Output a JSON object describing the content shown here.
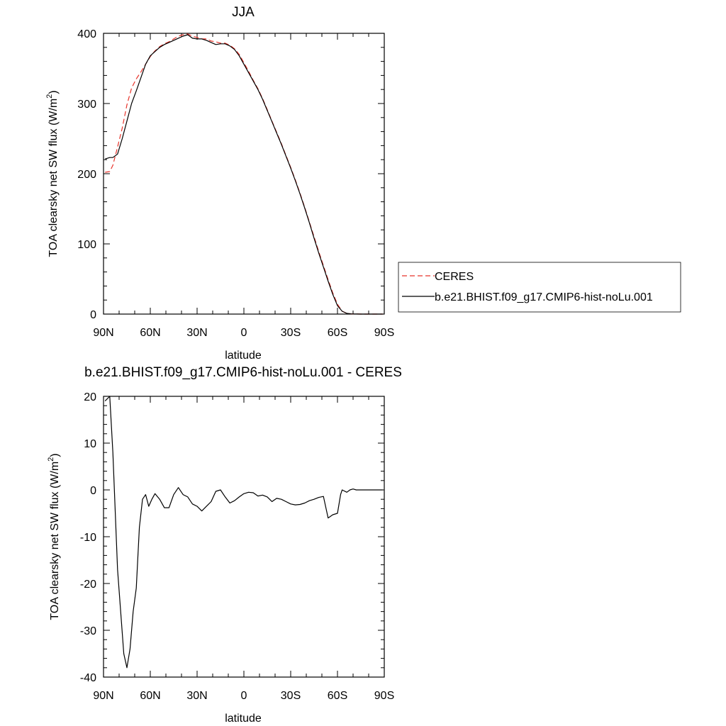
{
  "chart_data": [
    {
      "type": "line",
      "title": "JJA",
      "xlabel": "latitude",
      "ylabel": "TOA clearsky net SW flux (W/m2)",
      "ylabel_main": "TOA clearsky net SW flux (W/m",
      "ylabel_sup": "2",
      "ylabel_close": ")",
      "xlim": [
        90,
        -90
      ],
      "ylim": [
        0,
        400
      ],
      "x_ticks": [
        90,
        60,
        30,
        0,
        -30,
        -60,
        -90
      ],
      "x_tick_labels": [
        "90N",
        "60N",
        "30N",
        "0",
        "30S",
        "60S",
        "90S"
      ],
      "y_ticks": [
        0,
        100,
        200,
        300,
        400
      ],
      "y_tick_labels": [
        "0",
        "100",
        "200",
        "300",
        "400"
      ],
      "grid": false,
      "legend_position": "right",
      "series": [
        {
          "name": "CERES",
          "color": "#e8332a",
          "dash": "dashed",
          "x": [
            89,
            86,
            84,
            81,
            78,
            75,
            72,
            69,
            66,
            63,
            60,
            57,
            54,
            51,
            48,
            45,
            42,
            39,
            36,
            33,
            30,
            27,
            24,
            21,
            18,
            15,
            12,
            9,
            6,
            3,
            0,
            -3,
            -6,
            -9,
            -12,
            -15,
            -18,
            -21,
            -24,
            -27,
            -30,
            -33,
            -36,
            -39,
            -42,
            -45,
            -48,
            -51,
            -54,
            -57,
            -60,
            -63,
            -66,
            -69,
            -72,
            -75,
            -78,
            -81,
            -84,
            -87,
            -89
          ],
          "y": [
            202,
            203,
            212,
            238,
            265,
            298,
            322,
            335,
            345,
            356,
            367,
            375,
            381,
            385,
            388,
            392,
            396,
            398,
            399,
            396,
            394,
            392,
            392,
            389,
            388,
            386,
            386,
            383,
            378,
            370,
            358,
            346,
            333,
            321,
            307,
            291,
            275,
            259,
            243,
            226,
            209,
            191,
            172,
            152,
            131,
            110,
            89,
            69,
            49,
            30,
            14,
            4,
            1,
            0.3,
            0.1,
            0,
            0,
            0,
            0,
            0,
            0
          ]
        },
        {
          "name": "b.e21.BHIST.f09_g17.CMIP6-hist-noLu.001",
          "color": "#000000",
          "dash": "solid",
          "x": [
            89,
            86,
            84,
            81,
            78,
            75,
            72,
            69,
            66,
            63,
            60,
            57,
            54,
            51,
            48,
            45,
            42,
            39,
            36,
            33,
            30,
            27,
            24,
            21,
            18,
            15,
            12,
            9,
            6,
            3,
            0,
            -3,
            -6,
            -9,
            -12,
            -15,
            -18,
            -21,
            -24,
            -27,
            -30,
            -33,
            -36,
            -39,
            -42,
            -45,
            -48,
            -51,
            -54,
            -57,
            -60,
            -63,
            -66,
            -69,
            -72,
            -75,
            -78,
            -81,
            -84,
            -87,
            -89
          ],
          "y": [
            221,
            223,
            223,
            228,
            250,
            275,
            300,
            318,
            337,
            356,
            368,
            374,
            380,
            384,
            387,
            390,
            393,
            396,
            398,
            393,
            392,
            392,
            390,
            387,
            384,
            385,
            385,
            382,
            377,
            368,
            356,
            344,
            332,
            320,
            306,
            290,
            274,
            258,
            242,
            225,
            208,
            190,
            171,
            151,
            130,
            108,
            87,
            67,
            47,
            28,
            12,
            4,
            1,
            0.3,
            0.1,
            0,
            0,
            0,
            0,
            0,
            0
          ]
        }
      ]
    },
    {
      "type": "line",
      "title": "b.e21.BHIST.f09_g17.CMIP6-hist-noLu.001 - CERES",
      "xlabel": "latitude",
      "ylabel": "TOA clearsky net SW flux (W/m2)",
      "ylabel_main": "TOA clearsky net SW flux (W/m",
      "ylabel_sup": "2",
      "ylabel_close": ")",
      "xlim": [
        90,
        -90
      ],
      "ylim": [
        -40,
        20
      ],
      "x_ticks": [
        90,
        60,
        30,
        0,
        -30,
        -60,
        -90
      ],
      "x_tick_labels": [
        "90N",
        "60N",
        "30N",
        "0",
        "30S",
        "60S",
        "90S"
      ],
      "y_ticks": [
        -40,
        -30,
        -20,
        -10,
        0,
        10,
        20
      ],
      "y_tick_labels": [
        "-40",
        "-30",
        "-20",
        "-10",
        "0",
        "10",
        "20"
      ],
      "grid": false,
      "series": [
        {
          "color": "#000000",
          "dash": "solid",
          "x": [
            89,
            86,
            84,
            81,
            79,
            77,
            75,
            73,
            71,
            69,
            67,
            65,
            63,
            61,
            59,
            57,
            54,
            51,
            48,
            45,
            42,
            39,
            36,
            33,
            30,
            27,
            24,
            21,
            18,
            15,
            12,
            9,
            6,
            3,
            0,
            -3,
            -6,
            -9,
            -12,
            -15,
            -18,
            -21,
            -24,
            -27,
            -30,
            -33,
            -36,
            -39,
            -42,
            -45,
            -48,
            -51,
            -54,
            -57,
            -60,
            -62,
            -63,
            -66,
            -68,
            -70,
            -72,
            -75,
            -78,
            -81,
            -84,
            -87,
            -89
          ],
          "y": [
            19,
            20,
            8,
            -17,
            -26,
            -35,
            -38,
            -34,
            -26,
            -21,
            -8,
            -2,
            -1,
            -3.5,
            -2,
            -0.8,
            -2,
            -3.8,
            -3.8,
            -1,
            0.5,
            -1,
            -1.5,
            -3,
            -3.5,
            -4.5,
            -3.5,
            -2.5,
            -0.3,
            0,
            -1.5,
            -2.8,
            -2.3,
            -1.5,
            -0.8,
            -0.5,
            -0.6,
            -1.3,
            -1.1,
            -1.5,
            -2.5,
            -1.8,
            -2,
            -2.5,
            -3,
            -3.2,
            -3.1,
            -2.8,
            -2.3,
            -2,
            -1.6,
            -1.4,
            -6,
            -5.3,
            -5,
            -1,
            0,
            -0.5,
            0,
            0.2,
            0,
            0,
            0,
            0,
            0,
            0,
            0
          ]
        }
      ]
    }
  ]
}
